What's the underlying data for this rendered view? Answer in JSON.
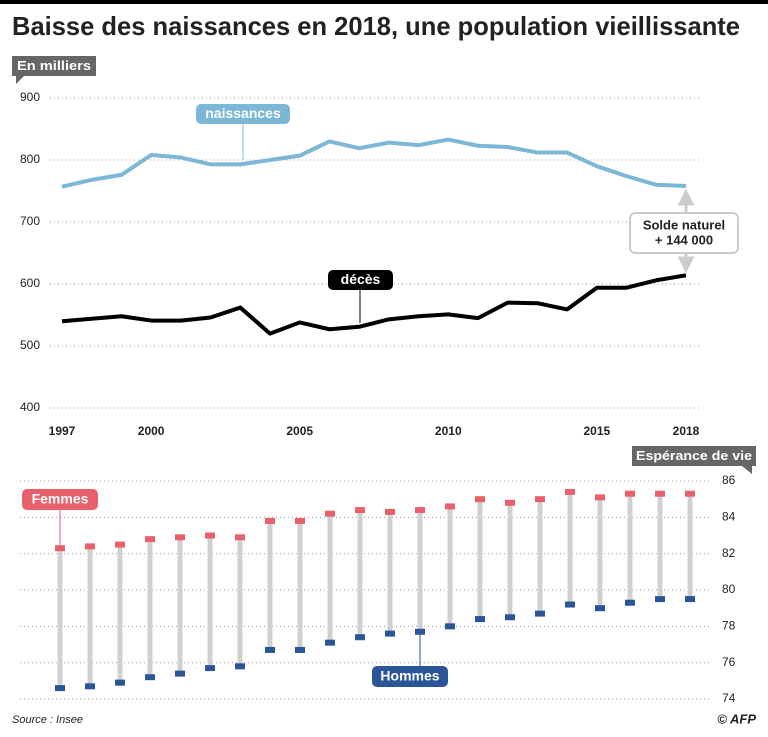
{
  "source": "Source : Insee",
  "credit": "© AFP",
  "chart_data": [
    {
      "type": "line",
      "title": "Baisse des naissances en 2018, une population vieillissante",
      "y_label": "En milliers",
      "x": [
        1997,
        1998,
        1999,
        2000,
        2001,
        2002,
        2003,
        2004,
        2005,
        2006,
        2007,
        2008,
        2009,
        2010,
        2011,
        2012,
        2013,
        2014,
        2015,
        2016,
        2017,
        2018
      ],
      "xlim": [
        1997,
        2018
      ],
      "xticks": [
        1997,
        2000,
        2005,
        2010,
        2015,
        2018
      ],
      "ylim": [
        400,
        900
      ],
      "yticks": [
        400,
        500,
        600,
        700,
        800,
        900
      ],
      "grid": true,
      "series": [
        {
          "name": "naissances",
          "color": "#7db7d7",
          "values": [
            757,
            768,
            776,
            808,
            804,
            793,
            793,
            800,
            807,
            830,
            819,
            828,
            824,
            833,
            823,
            821,
            812,
            812,
            790,
            774,
            760,
            758
          ]
        },
        {
          "name": "décès",
          "color": "#000000",
          "values": [
            540,
            544,
            548,
            541,
            541,
            546,
            562,
            520,
            538,
            527,
            531,
            543,
            548,
            551,
            545,
            570,
            569,
            559,
            594,
            594,
            606,
            614
          ]
        }
      ],
      "annotation": [
        "Solde naturel",
        "+ 144 000"
      ]
    },
    {
      "type": "dumbbell",
      "y_label": "Espérance de vie",
      "categories": [
        null,
        null,
        null,
        null,
        null,
        null,
        null,
        null,
        null,
        null,
        null,
        null,
        null,
        null,
        null,
        null,
        null,
        null,
        null,
        null,
        null,
        null
      ],
      "ylim": [
        74,
        86
      ],
      "yticks": [
        74,
        76,
        78,
        80,
        82,
        84,
        86
      ],
      "grid": true,
      "series": [
        {
          "name": "Femmes",
          "color": "#e8606b",
          "values": [
            82.3,
            82.4,
            82.5,
            82.8,
            82.9,
            83.0,
            82.9,
            83.8,
            83.8,
            84.2,
            84.4,
            84.3,
            84.4,
            84.6,
            85.0,
            84.8,
            85.0,
            85.4,
            85.1,
            85.3,
            85.3,
            85.3
          ]
        },
        {
          "name": "Hommes",
          "color": "#2a5599",
          "values": [
            74.6,
            74.7,
            74.9,
            75.2,
            75.4,
            75.7,
            75.8,
            76.7,
            76.7,
            77.1,
            77.4,
            77.6,
            77.7,
            78.0,
            78.4,
            78.5,
            78.7,
            79.2,
            79.0,
            79.3,
            79.5,
            79.5
          ]
        }
      ]
    }
  ]
}
